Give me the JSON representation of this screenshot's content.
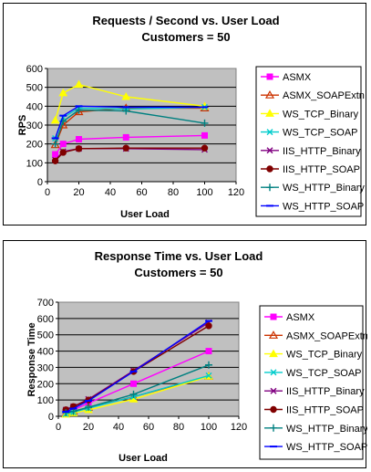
{
  "charts": [
    {
      "title": "Requests / Second  vs.  User Load",
      "subtitle": "Customers = 50",
      "xlabel": "User Load",
      "ylabel": "RPS"
    },
    {
      "title": "Response Time  vs.  User Load",
      "subtitle": "Customers = 50",
      "xlabel": "User Load",
      "ylabel": "Response Time"
    }
  ],
  "chart_data": [
    {
      "type": "line",
      "title": "Requests / Second  vs.  User Load",
      "subtitle": "Customers = 50",
      "xlabel": "User Load",
      "ylabel": "RPS",
      "xlim": [
        0,
        120
      ],
      "ylim": [
        0,
        600
      ],
      "xticks": [
        0,
        20,
        40,
        60,
        80,
        100,
        120
      ],
      "yticks": [
        0,
        100,
        200,
        300,
        400,
        500,
        600
      ],
      "grid": "horizontal",
      "legend": "right",
      "x": [
        5,
        10,
        20,
        50,
        100
      ],
      "series": [
        {
          "name": "ASMX",
          "color": "#ff00ff",
          "marker": "square",
          "values": [
            145,
            200,
            225,
            235,
            245
          ]
        },
        {
          "name": "ASMX_SOAPExtn",
          "color": "#cc3300",
          "marker": "triangle-open",
          "values": [
            195,
            300,
            370,
            390,
            390
          ]
        },
        {
          "name": "WS_TCP_Binary",
          "color": "#ffff00",
          "marker": "triangle",
          "values": [
            325,
            470,
            515,
            450,
            400
          ]
        },
        {
          "name": "WS_TCP_SOAP",
          "color": "#00cccc",
          "marker": "x",
          "values": [
            230,
            340,
            390,
            385,
            395
          ]
        },
        {
          "name": "IIS_HTTP_Binary",
          "color": "#800080",
          "marker": "x",
          "values": [
            115,
            160,
            175,
            175,
            170
          ]
        },
        {
          "name": "IIS_HTTP_SOAP",
          "color": "#800000",
          "marker": "circle",
          "values": [
            110,
            155,
            175,
            178,
            178
          ]
        },
        {
          "name": "WS_HTTP_Binary",
          "color": "#008080",
          "marker": "plus",
          "values": [
            200,
            320,
            380,
            375,
            310
          ]
        },
        {
          "name": "WS_HTTP_SOAP",
          "color": "#0000ff",
          "marker": "dash",
          "values": [
            230,
            350,
            400,
            395,
            395
          ]
        }
      ]
    },
    {
      "type": "line",
      "title": "Response Time  vs.  User Load",
      "subtitle": "Customers = 50",
      "xlabel": "User Load",
      "ylabel": "Response Time",
      "xlim": [
        0,
        120
      ],
      "ylim": [
        0,
        700
      ],
      "xticks": [
        0,
        20,
        40,
        60,
        80,
        100,
        120
      ],
      "yticks": [
        0,
        100,
        200,
        300,
        400,
        500,
        600,
        700
      ],
      "grid": "horizontal",
      "legend": "right",
      "x": [
        5,
        10,
        20,
        50,
        100
      ],
      "series": [
        {
          "name": "ASMX",
          "color": "#ff00ff",
          "marker": "square",
          "values": [
            20,
            40,
            80,
            200,
            400
          ]
        },
        {
          "name": "ASMX_SOAPExtn",
          "color": "#cc3300",
          "marker": "triangle-open",
          "values": [
            15,
            30,
            55,
            120,
            245
          ]
        },
        {
          "name": "WS_TCP_Binary",
          "color": "#ffff00",
          "marker": "triangle",
          "values": [
            12,
            20,
            40,
            105,
            245
          ]
        },
        {
          "name": "WS_TCP_SOAP",
          "color": "#00cccc",
          "marker": "x",
          "values": [
            15,
            25,
            50,
            120,
            250
          ]
        },
        {
          "name": "IIS_HTTP_Binary",
          "color": "#800080",
          "marker": "x",
          "values": [
            40,
            60,
            105,
            280,
            575
          ]
        },
        {
          "name": "IIS_HTTP_SOAP",
          "color": "#800000",
          "marker": "circle",
          "values": [
            40,
            60,
            100,
            275,
            555
          ]
        },
        {
          "name": "WS_HTTP_Binary",
          "color": "#008080",
          "marker": "plus",
          "values": [
            22,
            30,
            55,
            135,
            315
          ]
        },
        {
          "name": "WS_HTTP_SOAP",
          "color": "#0000ff",
          "marker": "dash",
          "values": [
            28,
            48,
            95,
            275,
            585
          ]
        }
      ]
    }
  ]
}
